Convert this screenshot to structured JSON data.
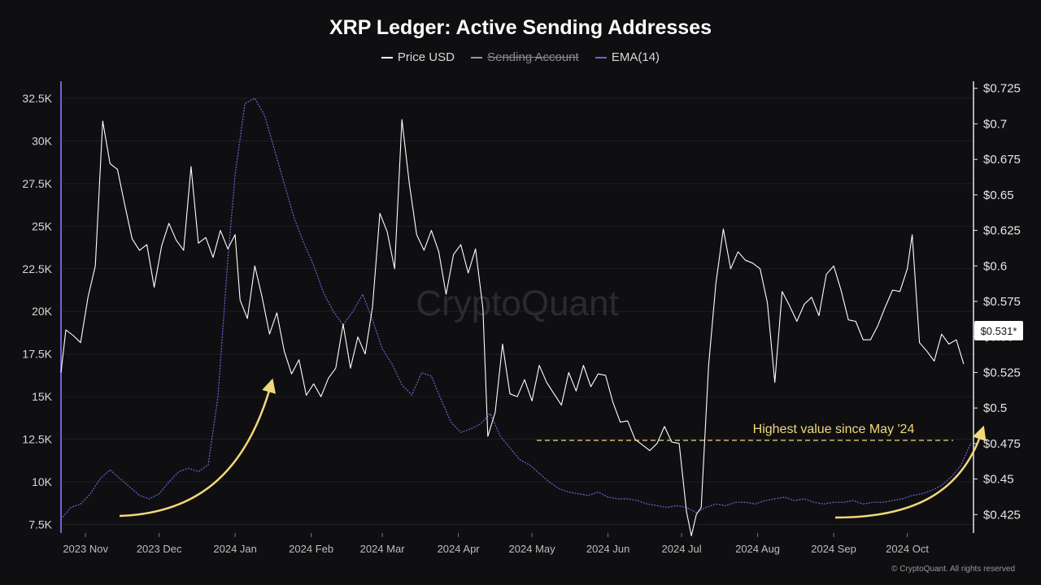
{
  "chart_data": {
    "type": "line",
    "title": "XRP Ledger: Active Sending Addresses",
    "legend": [
      {
        "name": "Price USD",
        "color": "#ffffff",
        "enabled": true
      },
      {
        "name": "Sending Account",
        "color": "#bbbbbb",
        "enabled": false
      },
      {
        "name": "EMA(14)",
        "color": "#6f63d8",
        "enabled": true
      }
    ],
    "x_ticks": [
      "2023 Nov",
      "2023 Dec",
      "2024 Jan",
      "2024 Feb",
      "2024 Mar",
      "2024 Apr",
      "2024 May",
      "2024 Jun",
      "2024 Jul",
      "2024 Aug",
      "2024 Sep",
      "2024 Oct"
    ],
    "y_left_ticks": [
      "7.5K",
      "10K",
      "12.5K",
      "15K",
      "17.5K",
      "20K",
      "22.5K",
      "25K",
      "27.5K",
      "30K",
      "32.5K"
    ],
    "y_right_ticks": [
      "$0.425",
      "$0.45",
      "$0.475",
      "$0.5",
      "$0.525",
      "$0.55",
      "$0.575",
      "$0.6",
      "$0.625",
      "$0.65",
      "$0.675",
      "$0.7",
      "$0.725"
    ],
    "ylim_left": [
      7000,
      33500
    ],
    "ylim_right": [
      0.412,
      0.73
    ],
    "xlim": [
      "2023-10-22",
      "2024-10-28"
    ],
    "legend_position": "top-center",
    "grid": true,
    "series": [
      {
        "name": "EMA(14)",
        "axis": "left",
        "x": [
          "2023-10-22",
          "2023-10-26",
          "2023-10-30",
          "2023-11-03",
          "2023-11-07",
          "2023-11-11",
          "2023-11-15",
          "2023-11-19",
          "2023-11-23",
          "2023-11-27",
          "2023-12-01",
          "2023-12-05",
          "2023-12-09",
          "2023-12-13",
          "2023-12-17",
          "2023-12-21",
          "2023-12-25",
          "2023-12-29",
          "2024-01-01",
          "2024-01-05",
          "2024-01-09",
          "2024-01-13",
          "2024-01-17",
          "2024-01-21",
          "2024-01-25",
          "2024-01-29",
          "2024-02-02",
          "2024-02-06",
          "2024-02-10",
          "2024-02-14",
          "2024-02-18",
          "2024-02-22",
          "2024-02-26",
          "2024-03-01",
          "2024-03-05",
          "2024-03-09",
          "2024-03-13",
          "2024-03-17",
          "2024-03-21",
          "2024-03-25",
          "2024-03-29",
          "2024-04-02",
          "2024-04-06",
          "2024-04-10",
          "2024-04-14",
          "2024-04-18",
          "2024-04-22",
          "2024-04-26",
          "2024-04-30",
          "2024-05-04",
          "2024-05-08",
          "2024-05-12",
          "2024-05-16",
          "2024-05-20",
          "2024-05-24",
          "2024-05-28",
          "2024-06-01",
          "2024-06-05",
          "2024-06-09",
          "2024-06-13",
          "2024-06-17",
          "2024-06-21",
          "2024-06-25",
          "2024-06-29",
          "2024-07-03",
          "2024-07-07",
          "2024-07-11",
          "2024-07-15",
          "2024-07-19",
          "2024-07-23",
          "2024-07-27",
          "2024-07-31",
          "2024-08-04",
          "2024-08-08",
          "2024-08-12",
          "2024-08-16",
          "2024-08-20",
          "2024-08-24",
          "2024-08-28",
          "2024-09-01",
          "2024-09-05",
          "2024-09-09",
          "2024-09-13",
          "2024-09-17",
          "2024-09-21",
          "2024-09-25",
          "2024-09-29",
          "2024-10-03",
          "2024-10-07",
          "2024-10-11",
          "2024-10-15",
          "2024-10-19",
          "2024-10-23",
          "2024-10-27"
        ],
        "values": [
          7800,
          8500,
          8700,
          9300,
          10200,
          10700,
          10200,
          9700,
          9200,
          9000,
          9300,
          10000,
          10600,
          10800,
          10600,
          11000,
          15000,
          23000,
          28000,
          32200,
          32500,
          31500,
          29500,
          27500,
          25500,
          24000,
          22700,
          21100,
          20000,
          19200,
          20000,
          21000,
          19500,
          17800,
          16900,
          15700,
          15100,
          16400,
          16200,
          14800,
          13500,
          12900,
          13100,
          13400,
          14000,
          12700,
          12000,
          11300,
          11000,
          10500,
          10000,
          9600,
          9400,
          9300,
          9200,
          9400,
          9100,
          9000,
          9000,
          8900,
          8700,
          8600,
          8500,
          8600,
          8500,
          8200,
          8500,
          8700,
          8600,
          8800,
          8800,
          8700,
          8900,
          9000,
          9100,
          8900,
          9000,
          8800,
          8700,
          8800,
          8800,
          8900,
          8700,
          8800,
          8800,
          8900,
          9000,
          9200,
          9300,
          9500,
          9800,
          10300,
          11000,
          12300
        ]
      },
      {
        "name": "Price USD",
        "axis": "right",
        "x": [
          "2023-10-22",
          "2023-10-24",
          "2023-10-27",
          "2023-10-30",
          "2023-11-02",
          "2023-11-05",
          "2023-11-08",
          "2023-11-11",
          "2023-11-14",
          "2023-11-17",
          "2023-11-20",
          "2023-11-23",
          "2023-11-26",
          "2023-11-29",
          "2023-12-02",
          "2023-12-05",
          "2023-12-08",
          "2023-12-11",
          "2023-12-14",
          "2023-12-17",
          "2023-12-20",
          "2023-12-23",
          "2023-12-26",
          "2023-12-29",
          "2024-01-01",
          "2024-01-03",
          "2024-01-06",
          "2024-01-09",
          "2024-01-12",
          "2024-01-15",
          "2024-01-18",
          "2024-01-21",
          "2024-01-24",
          "2024-01-27",
          "2024-01-30",
          "2024-02-02",
          "2024-02-05",
          "2024-02-08",
          "2024-02-11",
          "2024-02-14",
          "2024-02-17",
          "2024-02-20",
          "2024-02-23",
          "2024-02-26",
          "2024-02-29",
          "2024-03-03",
          "2024-03-06",
          "2024-03-09",
          "2024-03-12",
          "2024-03-15",
          "2024-03-18",
          "2024-03-21",
          "2024-03-24",
          "2024-03-27",
          "2024-03-30",
          "2024-04-02",
          "2024-04-05",
          "2024-04-08",
          "2024-04-11",
          "2024-04-13",
          "2024-04-16",
          "2024-04-19",
          "2024-04-22",
          "2024-04-25",
          "2024-04-28",
          "2024-05-01",
          "2024-05-04",
          "2024-05-07",
          "2024-05-10",
          "2024-05-13",
          "2024-05-16",
          "2024-05-19",
          "2024-05-22",
          "2024-05-25",
          "2024-05-28",
          "2024-05-31",
          "2024-06-03",
          "2024-06-06",
          "2024-06-09",
          "2024-06-12",
          "2024-06-15",
          "2024-06-18",
          "2024-06-21",
          "2024-06-24",
          "2024-06-27",
          "2024-06-30",
          "2024-07-03",
          "2024-07-05",
          "2024-07-07",
          "2024-07-09",
          "2024-07-12",
          "2024-07-15",
          "2024-07-18",
          "2024-07-21",
          "2024-07-24",
          "2024-07-27",
          "2024-07-30",
          "2024-08-02",
          "2024-08-05",
          "2024-08-08",
          "2024-08-11",
          "2024-08-14",
          "2024-08-17",
          "2024-08-20",
          "2024-08-23",
          "2024-08-26",
          "2024-08-29",
          "2024-09-01",
          "2024-09-04",
          "2024-09-07",
          "2024-09-10",
          "2024-09-13",
          "2024-09-16",
          "2024-09-19",
          "2024-09-22",
          "2024-09-25",
          "2024-09-28",
          "2024-10-01",
          "2024-10-03",
          "2024-10-06",
          "2024-10-09",
          "2024-10-12",
          "2024-10-15",
          "2024-10-18",
          "2024-10-21",
          "2024-10-24"
        ],
        "values": [
          0.525,
          0.555,
          0.551,
          0.546,
          0.578,
          0.6,
          0.702,
          0.672,
          0.668,
          0.643,
          0.619,
          0.611,
          0.615,
          0.585,
          0.614,
          0.63,
          0.618,
          0.611,
          0.67,
          0.616,
          0.62,
          0.606,
          0.625,
          0.612,
          0.622,
          0.576,
          0.563,
          0.6,
          0.578,
          0.552,
          0.567,
          0.54,
          0.524,
          0.534,
          0.509,
          0.517,
          0.508,
          0.521,
          0.528,
          0.559,
          0.528,
          0.55,
          0.538,
          0.571,
          0.637,
          0.624,
          0.598,
          0.703,
          0.658,
          0.622,
          0.611,
          0.625,
          0.61,
          0.58,
          0.608,
          0.615,
          0.595,
          0.612,
          0.57,
          0.48,
          0.497,
          0.545,
          0.51,
          0.508,
          0.52,
          0.505,
          0.53,
          0.518,
          0.51,
          0.502,
          0.525,
          0.512,
          0.53,
          0.515,
          0.524,
          0.523,
          0.504,
          0.49,
          0.491,
          0.478,
          0.474,
          0.47,
          0.475,
          0.487,
          0.476,
          0.475,
          0.427,
          0.41,
          0.425,
          0.43,
          0.53,
          0.588,
          0.626,
          0.598,
          0.61,
          0.604,
          0.602,
          0.598,
          0.574,
          0.518,
          0.582,
          0.572,
          0.561,
          0.573,
          0.578,
          0.565,
          0.594,
          0.6,
          0.583,
          0.562,
          0.561,
          0.548,
          0.548,
          0.558,
          0.571,
          0.583,
          0.582,
          0.598,
          0.622,
          0.546,
          0.54,
          0.533,
          0.552,
          0.545,
          0.548,
          0.531
        ]
      }
    ],
    "last_value_label": "$0.531*",
    "annotations": [
      {
        "text": "Highest value since May '24",
        "color": "#f2d87a"
      }
    ]
  },
  "watermark": "CryptoQuant",
  "copyright": "© CryptoQuant. All rights reserved"
}
